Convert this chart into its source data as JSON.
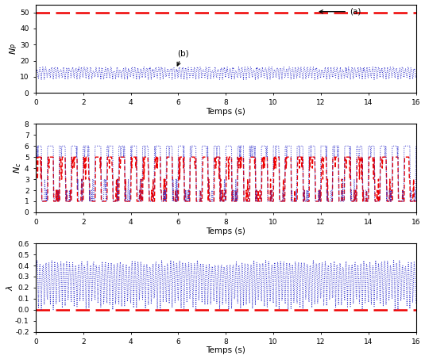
{
  "t_start": 0,
  "t_end": 16,
  "dt": 0.02,
  "subplot1": {
    "ylabel": "$N_P$",
    "ylim": [
      0,
      55
    ],
    "yticks": [
      0,
      10,
      20,
      30,
      40,
      50
    ],
    "red_value": 50,
    "blue_base": 8.0,
    "blue_spike_amp": 7.0,
    "blue_fast_freq": 4.0
  },
  "subplot2": {
    "ylabel": "$N_c$",
    "ylim": [
      0,
      8
    ],
    "yticks": [
      0,
      1,
      2,
      3,
      4,
      5,
      6,
      7,
      8
    ],
    "red_low": 1,
    "red_high": 5,
    "blue_low": 1,
    "blue_high": 6,
    "switch_freq": 2.0
  },
  "subplot3": {
    "ylabel": "$\\lambda$",
    "ylim": [
      -0.2,
      0.6
    ],
    "yticks": [
      -0.2,
      -0.1,
      0.0,
      0.1,
      0.2,
      0.3,
      0.4,
      0.5,
      0.6
    ],
    "red_value": 0.0,
    "blue_top": 0.42,
    "blue_fast_freq": 4.0
  },
  "xlabel": "Temps (s)",
  "xticks": [
    0,
    2,
    4,
    6,
    8,
    10,
    12,
    14,
    16
  ],
  "red_color": "#EE0000",
  "blue_color": "#3333CC",
  "bg_color": "#ffffff",
  "fig_width": 5.35,
  "fig_height": 4.53,
  "dpi": 100
}
